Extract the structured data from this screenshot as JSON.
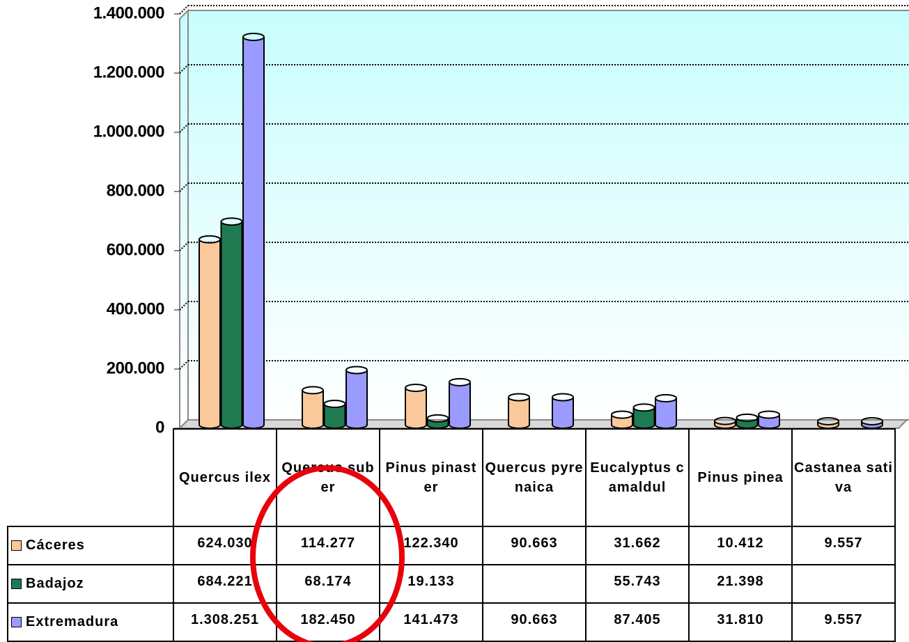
{
  "chart_data": {
    "type": "bar",
    "categories": [
      "Quercus ilex",
      "Quercus suber",
      "Pinus pinaster",
      "Quercus pyrenaica",
      "Eucalyptus camaldul",
      "Pinus pinea",
      "Castanea sativa"
    ],
    "series": [
      {
        "name": "Cáceres",
        "color": "#f9c99b",
        "values": [
          624030,
          114277,
          122340,
          90663,
          31662,
          10412,
          9557
        ],
        "value_labels": [
          "624.030",
          "114.277",
          "122.340",
          "90.663",
          "31.662",
          "10.412",
          "9.557"
        ]
      },
      {
        "name": "Badajoz",
        "color": "#1f7a52",
        "values": [
          684221,
          68174,
          19133,
          null,
          55743,
          21398,
          null
        ],
        "value_labels": [
          "684.221",
          "68.174",
          "19.133",
          null,
          "55.743",
          "21.398",
          null
        ]
      },
      {
        "name": "Extremadura",
        "color": "#9a9aff",
        "values": [
          1308251,
          182450,
          141473,
          90663,
          87405,
          31810,
          9557
        ],
        "value_labels": [
          "1.308.251",
          "182.450",
          "141.473",
          "90.663",
          "87.405",
          "31.810",
          "9.557"
        ]
      }
    ],
    "ylim": [
      0,
      1400000
    ],
    "yticks": [
      0,
      {
        "value": 200000,
        "label": "200.000"
      },
      {
        "value": 400000,
        "label": "400.000"
      },
      {
        "value": 600000,
        "label": "600.000"
      },
      {
        "value": 800000,
        "label": "800.000"
      },
      {
        "value": 1000000,
        "label": "1.000.000"
      },
      {
        "value": 1200000,
        "label": "1.200.000"
      },
      {
        "value": 1400000,
        "label": "1.400.000"
      }
    ],
    "grid": true
  }
}
